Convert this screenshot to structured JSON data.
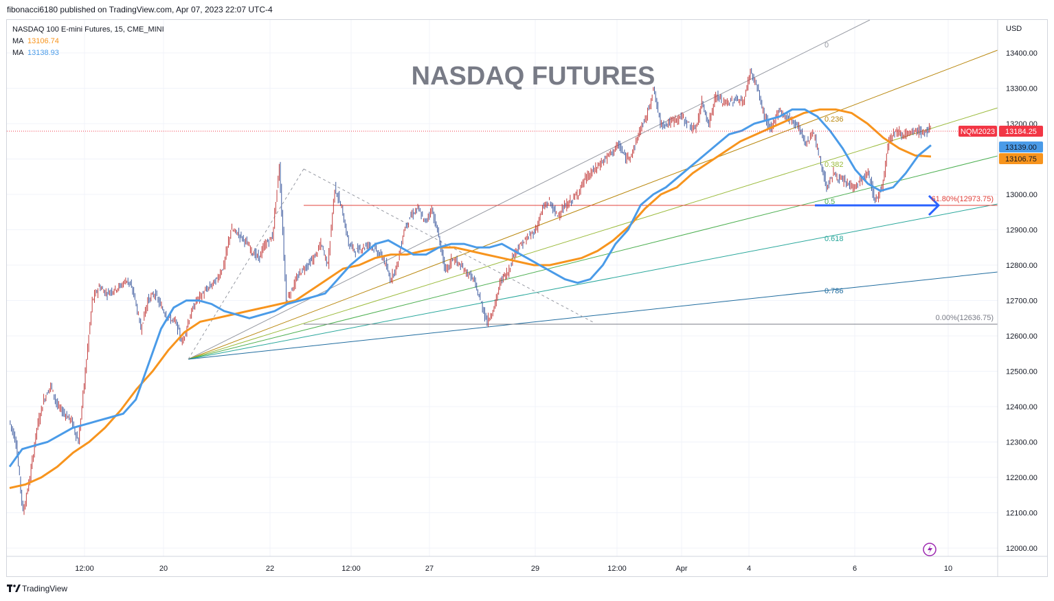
{
  "header": {
    "published": "fibonacci6180 published on TradingView.com, Apr 07, 2023 22:07 UTC-4"
  },
  "legend": {
    "symbol": "NASDAQ 100 E-mini Futures, 15, CME_MINI",
    "ma1": {
      "label": "MA",
      "value": "13106.74",
      "color": "#f7941d"
    },
    "ma2": {
      "label": "MA",
      "value": "13138.93",
      "color": "#4a9be8"
    }
  },
  "watermark": "NASDAQ FUTURES",
  "footer": {
    "brand": "TradingView",
    "icon": "tradingview-logo-icon"
  },
  "colors": {
    "up": "#c23b3b",
    "down": "#3d5a9e",
    "ma_fast": "#4a9be8",
    "ma_slow": "#f7941d",
    "price_tag": "#f23645",
    "arrow": "#2962ff",
    "resistance": "#e0403a"
  },
  "chart_data": {
    "type": "line",
    "timeframe": "15",
    "currency": "USD",
    "ylim": [
      11980,
      13500
    ],
    "y_ticks": [
      "13400.00",
      "13300.00",
      "13200.00",
      "13100.00",
      "13000.00",
      "12900.00",
      "12800.00",
      "12700.00",
      "12600.00",
      "12500.00",
      "12400.00",
      "12300.00",
      "12200.00",
      "12100.00",
      "12000.00"
    ],
    "x_ticks": [
      "12:00",
      "20",
      "22",
      "12:00",
      "27",
      "29",
      "12:00",
      "Apr",
      "4",
      "6",
      "10"
    ],
    "series": [
      {
        "name": "NQM2023",
        "role": "price",
        "values": [
          12360,
          12300,
          12100,
          12200,
          12340,
          12420,
          12460,
          12400,
          12380,
          12360,
          12300,
          12500,
          12700,
          12740,
          12720,
          12730,
          12740,
          12760,
          12720,
          12620,
          12700,
          12720,
          12680,
          12650,
          12640,
          12580,
          12650,
          12700,
          12720,
          12740,
          12760,
          12800,
          12900,
          12890,
          12870,
          12840,
          12820,
          12860,
          12880,
          13080,
          12700,
          12740,
          12780,
          12800,
          12820,
          12860,
          12800,
          13020,
          12960,
          12860,
          12840,
          12850,
          12860,
          12840,
          12820,
          12760,
          12800,
          12900,
          12940,
          12960,
          12920,
          12960,
          12880,
          12780,
          12820,
          12800,
          12780,
          12760,
          12700,
          12640,
          12680,
          12760,
          12780,
          12840,
          12860,
          12880,
          12900,
          12960,
          12980,
          12940,
          12960,
          12980,
          13000,
          13040,
          13060,
          13080,
          13100,
          13120,
          13140,
          13100,
          13120,
          13180,
          13220,
          13300,
          13200,
          13200,
          13210,
          13220,
          13200,
          13180,
          13260,
          13200,
          13280,
          13260,
          13260,
          13270,
          13260,
          13350,
          13300,
          13220,
          13180,
          13240,
          13220,
          13210,
          13190,
          13140,
          13180,
          13100,
          13020,
          13060,
          13040,
          13030,
          13020,
          13040,
          13060,
          12980,
          13020,
          13160,
          13180,
          13170,
          13170,
          13180,
          13175,
          13184.25
        ]
      },
      {
        "name": "MA",
        "role": "ma_fast",
        "value": 13138.93,
        "values": [
          12230,
          12280,
          12290,
          12300,
          12320,
          12340,
          12350,
          12360,
          12370,
          12380,
          12420,
          12520,
          12620,
          12680,
          12700,
          12700,
          12690,
          12670,
          12660,
          12650,
          12660,
          12670,
          12690,
          12700,
          12710,
          12720,
          12760,
          12800,
          12830,
          12860,
          12870,
          12850,
          12830,
          12830,
          12850,
          12860,
          12860,
          12850,
          12850,
          12860,
          12840,
          12820,
          12800,
          12780,
          12760,
          12750,
          12760,
          12800,
          12860,
          12900,
          12970,
          13000,
          13020,
          13050,
          13080,
          13110,
          13140,
          13170,
          13180,
          13200,
          13210,
          13220,
          13240,
          13240,
          13220,
          13180,
          13130,
          13070,
          13030,
          13010,
          13020,
          13060,
          13110,
          13139
        ]
      },
      {
        "name": "MA",
        "role": "ma_slow",
        "value": 13106.74,
        "values": [
          12170,
          12180,
          12200,
          12230,
          12270,
          12300,
          12340,
          12390,
          12450,
          12500,
          12560,
          12610,
          12640,
          12650,
          12660,
          12670,
          12680,
          12690,
          12700,
          12730,
          12760,
          12790,
          12800,
          12820,
          12830,
          12830,
          12840,
          12850,
          12850,
          12840,
          12830,
          12820,
          12810,
          12800,
          12800,
          12810,
          12820,
          12840,
          12870,
          12910,
          12960,
          13000,
          13020,
          13060,
          13090,
          13120,
          13150,
          13170,
          13190,
          13210,
          13230,
          13240,
          13240,
          13230,
          13200,
          13160,
          13130,
          13110,
          13107
        ]
      }
    ],
    "price_labels": [
      {
        "label": "NQM2023",
        "value": "13184.25",
        "color": "#f23645"
      },
      {
        "value": "13139.00",
        "color": "#4a9be8"
      },
      {
        "value": "13106.75",
        "color": "#f7941d"
      }
    ],
    "fib_levels": [
      {
        "label": "0"
      },
      {
        "label": "0.236"
      },
      {
        "label": "0.382"
      },
      {
        "label": "0.5"
      },
      {
        "label": "0.618"
      },
      {
        "label": "0.786"
      }
    ],
    "annotations": [
      {
        "label": "61.80%(12973.75)",
        "value": 12973.75
      },
      {
        "label": "0.00%(12636.75)",
        "value": 12636.75
      }
    ]
  }
}
